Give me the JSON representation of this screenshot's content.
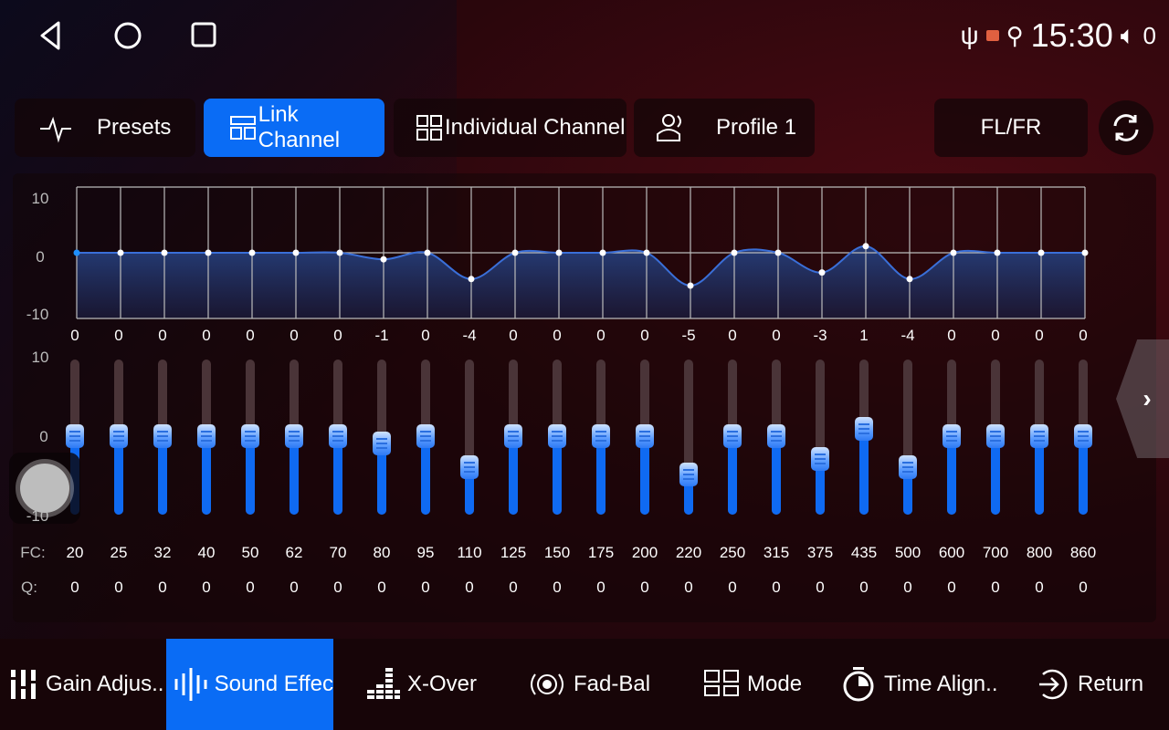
{
  "status": {
    "time": "15:30",
    "volume": "0"
  },
  "tabs": {
    "presets": "Presets",
    "link": "Link Channel",
    "individual": "Individual Channel",
    "profile": "Profile 1",
    "channel": "FL/FR"
  },
  "graph": {
    "y_ticks": [
      "10",
      "0",
      "-10"
    ]
  },
  "slider_ticks": [
    "10",
    "0",
    "-10"
  ],
  "row_labels": {
    "fc": "FC:",
    "q": "Q:"
  },
  "bands": {
    "gains": [
      0,
      0,
      0,
      0,
      0,
      0,
      0,
      -1,
      0,
      -4,
      0,
      0,
      0,
      0,
      -5,
      0,
      0,
      -3,
      1,
      -4,
      0,
      0,
      0,
      0
    ],
    "fc": [
      "20",
      "25",
      "32",
      "40",
      "50",
      "62",
      "70",
      "80",
      "95",
      "110",
      "125",
      "150",
      "175",
      "200",
      "220",
      "250",
      "315",
      "375",
      "435",
      "500",
      "600",
      "700",
      "800",
      "860"
    ],
    "q": [
      "0",
      "0",
      "0",
      "0",
      "0",
      "0",
      "0",
      "0",
      "0",
      "0",
      "0",
      "0",
      "0",
      "0",
      "0",
      "0",
      "0",
      "0",
      "0",
      "0",
      "0",
      "0",
      "0",
      "0"
    ],
    "range": [
      -10,
      10
    ]
  },
  "bottom": {
    "gain": "Gain Adjus..",
    "sound": "Sound Effec",
    "xover": "X-Over",
    "fadbal": "Fad-Bal",
    "mode": "Mode",
    "time": "Time Align..",
    "ret": "Return"
  },
  "colors": {
    "accent": "#0a6cf5"
  }
}
